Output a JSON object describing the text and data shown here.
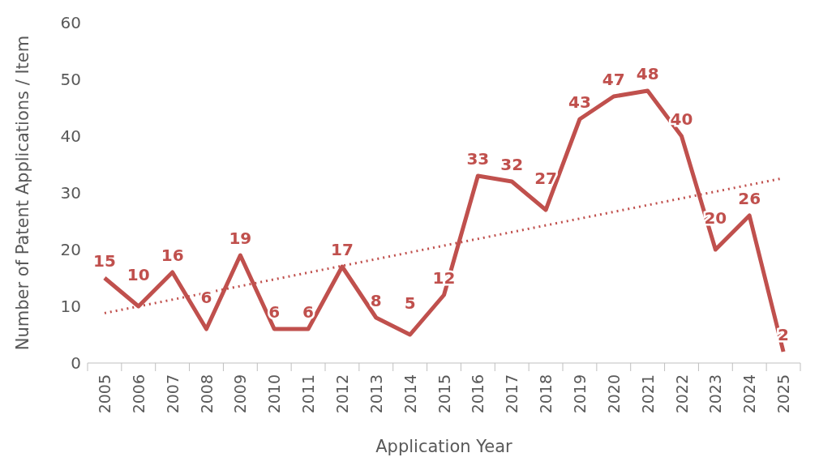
{
  "chart_data": {
    "type": "line",
    "xlabel": "Application Year",
    "ylabel": "Number of Patent Applications / Item",
    "categories": [
      "2005",
      "2006",
      "2007",
      "2008",
      "2009",
      "2010",
      "2011",
      "2012",
      "2013",
      "2014",
      "2015",
      "2016",
      "2017",
      "2018",
      "2019",
      "2020",
      "2021",
      "2022",
      "2023",
      "2024",
      "2025"
    ],
    "series": [
      {
        "color": "#c0504d",
        "values": [
          15,
          10,
          16,
          6,
          19,
          6,
          6,
          17,
          8,
          5,
          12,
          33,
          32,
          27,
          43,
          47,
          48,
          40,
          20,
          26,
          2
        ],
        "value_labels": [
          "15",
          "10",
          "16",
          "6",
          "19",
          "6",
          "6",
          "17",
          "8",
          "5",
          "12",
          "33",
          "32",
          "27",
          "43",
          "47",
          "48",
          "40",
          "20",
          "26",
          "2"
        ]
      },
      {
        "type": "line",
        "values": [
          8.8,
          null,
          null,
          null,
          null,
          null,
          null,
          null,
          null,
          null,
          null,
          null,
          null,
          null,
          null,
          null,
          null,
          null,
          null,
          null,
          32.6
        ],
        "color": "#c0504d",
        "line_style": "dotted"
      }
    ],
    "ylim": [
      0,
      60
    ],
    "yticks": [
      0,
      10,
      20,
      30,
      40,
      50,
      60
    ],
    "marker": "none"
  }
}
